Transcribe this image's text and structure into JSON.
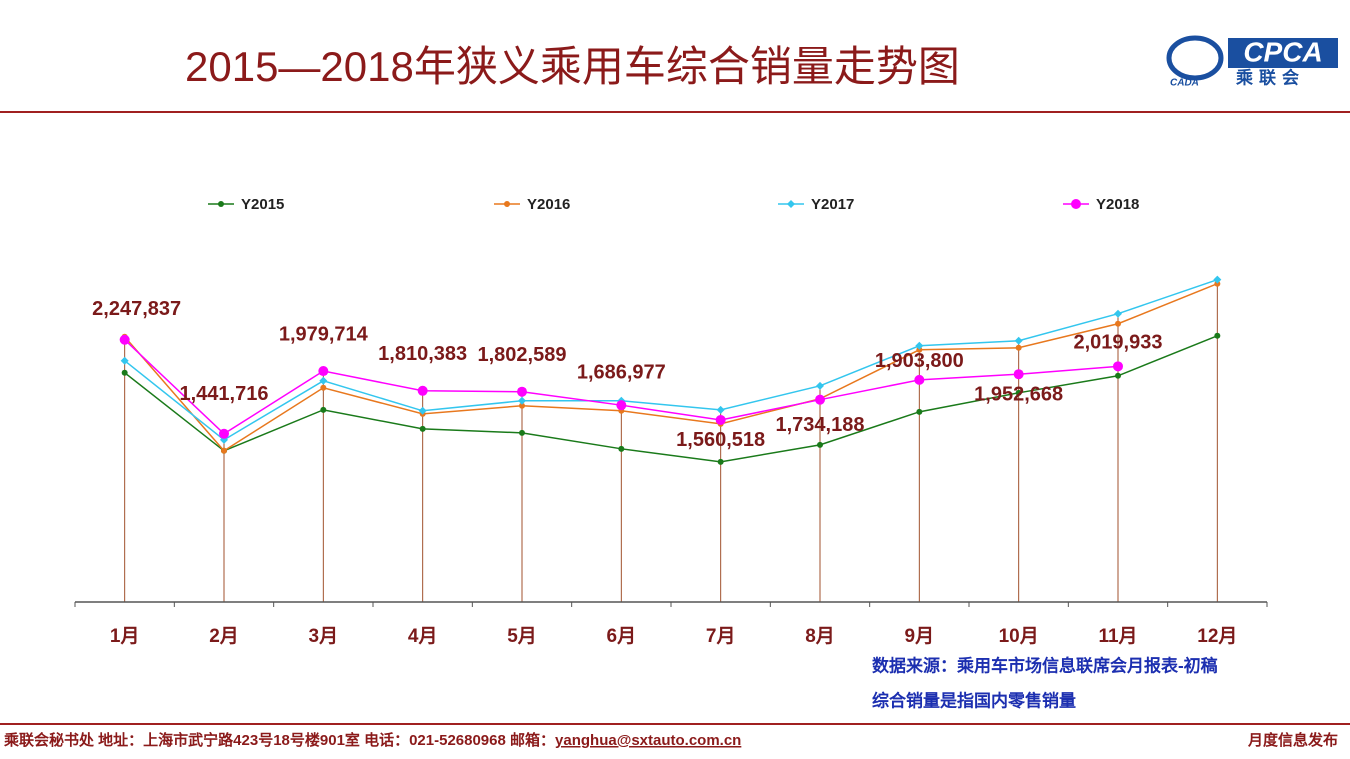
{
  "header": {
    "logo": "CPCA",
    "logo_sub": "乘联会",
    "logo_icon": "CADA"
  },
  "chart_data": {
    "type": "line",
    "title": "2015—2018年狭义乘用车综合销量走势图",
    "categories": [
      "1月",
      "2月",
      "3月",
      "4月",
      "5月",
      "6月",
      "7月",
      "8月",
      "9月",
      "10月",
      "11月",
      "12月"
    ],
    "ylim": [
      0,
      3000000
    ],
    "legend": "top",
    "series": [
      {
        "name": "Y2015",
        "color": "#1a7a1a",
        "marker": "circle",
        "values": [
          1965000,
          1296000,
          1647000,
          1484000,
          1450000,
          1313000,
          1201000,
          1347000,
          1630000,
          1793000,
          1939000,
          2282000
        ]
      },
      {
        "name": "Y2016",
        "color": "#e8781e",
        "marker": "circle",
        "values": [
          2274000,
          1296000,
          1836000,
          1613000,
          1682000,
          1639000,
          1527000,
          1742000,
          2162000,
          2179000,
          2385000,
          2728000
        ]
      },
      {
        "name": "Y2017",
        "color": "#33c6ee",
        "marker": "diamond",
        "values": [
          2068000,
          1390000,
          1896000,
          1639000,
          1725000,
          1725000,
          1647000,
          1853000,
          2196000,
          2239000,
          2471000,
          2763000
        ]
      },
      {
        "name": "Y2018",
        "color": "#ff00ff",
        "marker": "big-circle",
        "values": [
          2247837,
          1441716,
          1979714,
          1810383,
          1802589,
          1686977,
          1560518,
          1734188,
          1903800,
          1952668,
          2019933,
          null
        ],
        "value_labels": [
          "2,247,837",
          "1,441,716",
          "1,979,714",
          "1,810,383",
          "1,802,589",
          "1,686,977",
          "1,560,518",
          "1,734,188",
          "1,903,800",
          "1,952,668",
          "2,019,933",
          null
        ]
      }
    ],
    "notes": [
      "数据来源：乘用车市场信息联席会月报表-初稿",
      "综合销量是指国内零售销量"
    ]
  },
  "footer": {
    "contact": "乘联会秘书处  地址：上海市武宁路423号18号楼901室  电话：021-52680968   邮箱：",
    "email": "yanghua@sxtauto.com.cn",
    "right": "月度信息发布"
  }
}
